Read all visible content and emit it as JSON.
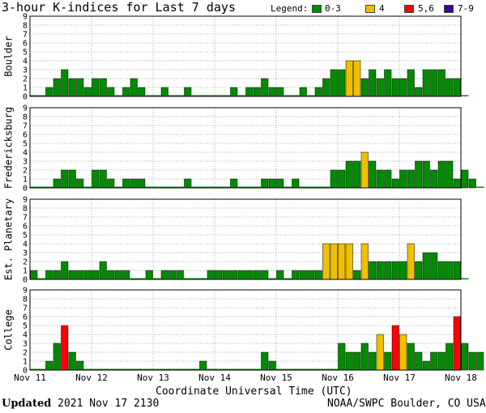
{
  "title": "3-hour K-indices for Last 7 days",
  "legend": {
    "label": "Legend:",
    "items": [
      {
        "label": "0-3",
        "color": "#008c00"
      },
      {
        "label": "4",
        "color": "#f0c000"
      },
      {
        "label": "5,6",
        "color": "#ff0000"
      },
      {
        "label": "7-9",
        "color": "#400090"
      }
    ]
  },
  "footer": {
    "updated_label": "Updated",
    "updated_value": "2021 Nov 17 2130",
    "source": "NOAA/SWPC Boulder, CO USA"
  },
  "chart_data": {
    "type": "bar",
    "xlabel": "Coordinate Universal Time (UTC)",
    "x_tick_labels": [
      "Nov 11",
      "Nov 12",
      "Nov 13",
      "Nov 14",
      "Nov 15",
      "Nov 16",
      "Nov 17",
      "Nov 18"
    ],
    "ylim": [
      0,
      9
    ],
    "y_ticks": [
      "0",
      "1",
      "2",
      "3",
      "4",
      "5",
      "6",
      "7",
      "8",
      "9"
    ],
    "bars_per_day": 8,
    "grid": true,
    "panels": [
      {
        "name": "Boulder",
        "values": [
          0,
          0,
          1,
          2,
          3,
          2,
          2,
          1,
          2,
          2,
          1,
          0,
          1,
          2,
          1,
          0,
          0,
          1,
          0,
          0,
          1,
          0,
          0,
          0,
          0,
          0,
          1,
          0,
          1,
          1,
          2,
          1,
          1,
          0,
          0,
          1,
          0,
          1,
          2,
          3,
          3,
          4,
          4,
          2,
          3,
          2,
          3,
          2,
          2,
          3,
          1,
          3,
          3,
          3,
          2,
          2,
          0
        ]
      },
      {
        "name": "Fredericksburg",
        "values": [
          0,
          0,
          0,
          1,
          2,
          2,
          1,
          0,
          2,
          2,
          1,
          0,
          1,
          1,
          1,
          0,
          0,
          0,
          0,
          0,
          1,
          0,
          0,
          0,
          0,
          0,
          1,
          0,
          0,
          0,
          1,
          1,
          1,
          0,
          1,
          0,
          0,
          0,
          0,
          2,
          2,
          3,
          3,
          4,
          3,
          2,
          2,
          1,
          2,
          2,
          3,
          3,
          2,
          3,
          3,
          1,
          2,
          1,
          0
        ]
      },
      {
        "name": "Est. Planetary",
        "values": [
          1,
          0,
          1,
          1,
          2,
          1,
          1,
          1,
          1,
          2,
          1,
          1,
          1,
          0,
          0,
          1,
          0,
          1,
          1,
          1,
          0,
          0,
          0,
          1,
          1,
          1,
          1,
          1,
          1,
          1,
          1,
          0,
          1,
          0,
          1,
          1,
          1,
          1,
          4,
          4,
          4,
          4,
          1,
          4,
          2,
          2,
          2,
          2,
          2,
          4,
          2,
          3,
          3,
          2,
          2,
          2,
          0
        ]
      },
      {
        "name": "College",
        "values": [
          0,
          0,
          1,
          3,
          5,
          2,
          1,
          0,
          0,
          0,
          0,
          0,
          0,
          0,
          0,
          0,
          0,
          0,
          0,
          0,
          0,
          0,
          1,
          0,
          0,
          0,
          0,
          0,
          0,
          0,
          2,
          1,
          0,
          0,
          0,
          0,
          0,
          0,
          0,
          0,
          3,
          2,
          2,
          3,
          2,
          4,
          2,
          5,
          4,
          3,
          2,
          1,
          2,
          2,
          3,
          6,
          3,
          2,
          2
        ]
      }
    ]
  }
}
